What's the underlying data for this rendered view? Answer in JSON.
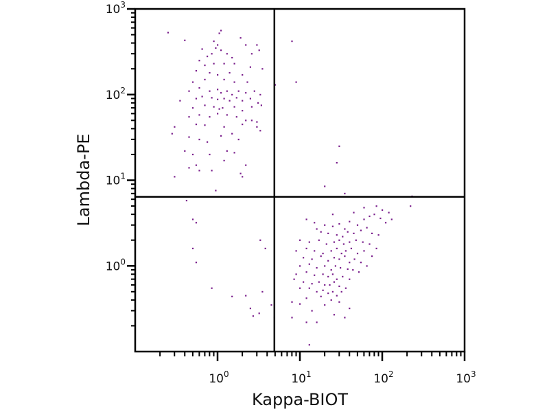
{
  "chart_data": {
    "type": "scatter",
    "title": "",
    "xlabel": "Kappa-BIOT",
    "ylabel": "Lambda-PE",
    "xscale": "log",
    "yscale": "log",
    "xlim": [
      0.1,
      1000
    ],
    "ylim": [
      0.1,
      1000
    ],
    "xticks": [
      {
        "base": "10",
        "exp": "0",
        "value": 1
      },
      {
        "base": "10",
        "exp": "1",
        "value": 10
      },
      {
        "base": "10",
        "exp": "2",
        "value": 100
      },
      {
        "base": "10",
        "exp": "3",
        "value": 1000
      }
    ],
    "yticks": [
      {
        "base": "10",
        "exp": "0",
        "value": 1
      },
      {
        "base": "10",
        "exp": "1",
        "value": 10
      },
      {
        "base": "10",
        "exp": "2",
        "value": 100
      },
      {
        "base": "10",
        "exp": "3",
        "value": 1000
      }
    ],
    "grid": false,
    "quadrant_gates": {
      "x": 4.9,
      "y": 6.4
    },
    "point_color": "#7a1f8c",
    "points": [
      [
        1.1,
        560
      ],
      [
        1.05,
        520
      ],
      [
        0.9,
        420
      ],
      [
        1.0,
        380
      ],
      [
        0.95,
        350
      ],
      [
        1.1,
        330
      ],
      [
        0.75,
        280
      ],
      [
        0.85,
        300
      ],
      [
        1.3,
        300
      ],
      [
        1.5,
        270
      ],
      [
        0.6,
        250
      ],
      [
        0.7,
        220
      ],
      [
        0.9,
        230
      ],
      [
        1.2,
        230
      ],
      [
        1.6,
        230
      ],
      [
        2.2,
        380
      ],
      [
        2.6,
        300
      ],
      [
        2.5,
        210
      ],
      [
        3.5,
        200
      ],
      [
        3.2,
        330
      ],
      [
        0.55,
        190
      ],
      [
        0.8,
        180
      ],
      [
        1.0,
        170
      ],
      [
        1.4,
        180
      ],
      [
        2.0,
        170
      ],
      [
        0.5,
        140
      ],
      [
        0.7,
        150
      ],
      [
        1.2,
        150
      ],
      [
        1.6,
        140
      ],
      [
        2.3,
        140
      ],
      [
        0.45,
        110
      ],
      [
        0.6,
        120
      ],
      [
        0.8,
        110
      ],
      [
        1.0,
        115
      ],
      [
        1.1,
        105
      ],
      [
        1.3,
        110
      ],
      [
        1.5,
        100
      ],
      [
        1.8,
        110
      ],
      [
        2.2,
        105
      ],
      [
        2.8,
        110
      ],
      [
        3.3,
        100
      ],
      [
        0.35,
        85
      ],
      [
        0.55,
        90
      ],
      [
        0.65,
        95
      ],
      [
        0.85,
        92
      ],
      [
        1.0,
        88
      ],
      [
        1.2,
        90
      ],
      [
        1.4,
        85
      ],
      [
        1.7,
        92
      ],
      [
        2.0,
        85
      ],
      [
        2.5,
        90
      ],
      [
        3.1,
        80
      ],
      [
        0.5,
        70
      ],
      [
        0.7,
        75
      ],
      [
        0.9,
        72
      ],
      [
        1.05,
        68
      ],
      [
        1.15,
        70
      ],
      [
        1.6,
        72
      ],
      [
        2.0,
        65
      ],
      [
        2.6,
        72
      ],
      [
        3.4,
        75
      ],
      [
        0.45,
        55
      ],
      [
        0.6,
        58
      ],
      [
        0.8,
        55
      ],
      [
        1.0,
        60
      ],
      [
        1.3,
        58
      ],
      [
        1.7,
        55
      ],
      [
        2.2,
        50
      ],
      [
        2.6,
        50
      ],
      [
        3.0,
        48
      ],
      [
        0.3,
        42
      ],
      [
        0.55,
        45
      ],
      [
        0.7,
        44
      ],
      [
        1.2,
        42
      ],
      [
        2.0,
        45
      ],
      [
        3.0,
        42
      ],
      [
        3.3,
        38
      ],
      [
        0.28,
        35
      ],
      [
        0.45,
        32
      ],
      [
        0.6,
        30
      ],
      [
        0.75,
        28
      ],
      [
        1.1,
        33
      ],
      [
        1.5,
        35
      ],
      [
        1.8,
        30
      ],
      [
        0.4,
        22
      ],
      [
        0.5,
        20
      ],
      [
        0.8,
        20
      ],
      [
        1.3,
        22
      ],
      [
        1.6,
        21
      ],
      [
        0.45,
        14
      ],
      [
        0.55,
        15
      ],
      [
        0.85,
        13
      ],
      [
        1.2,
        17
      ],
      [
        1.9,
        12
      ],
      [
        2.2,
        15
      ],
      [
        0.3,
        11
      ],
      [
        0.6,
        13
      ],
      [
        0.95,
        7.6
      ],
      [
        2.0,
        11
      ],
      [
        3.0,
        380
      ],
      [
        0.65,
        340
      ],
      [
        1.9,
        460
      ],
      [
        0.25,
        530
      ],
      [
        0.4,
        430
      ],
      [
        5,
        130
      ],
      [
        8,
        420
      ],
      [
        9,
        140
      ],
      [
        30,
        25
      ],
      [
        28,
        16
      ],
      [
        20,
        8.5
      ],
      [
        35,
        7
      ],
      [
        230,
        6.5
      ],
      [
        220,
        5
      ],
      [
        0.42,
        5.8
      ],
      [
        0.5,
        3.5
      ],
      [
        0.55,
        3.2
      ],
      [
        0.5,
        1.6
      ],
      [
        0.55,
        1.1
      ],
      [
        0.85,
        0.55
      ],
      [
        2.2,
        0.45
      ],
      [
        2.5,
        0.32
      ],
      [
        2.7,
        0.26
      ],
      [
        3.2,
        0.28
      ],
      [
        3.5,
        0.5
      ],
      [
        3.3,
        2.0
      ],
      [
        3.8,
        1.6
      ],
      [
        4.5,
        0.35
      ],
      [
        4.9,
        0.25
      ],
      [
        1.5,
        0.44
      ],
      [
        12,
        3.5
      ],
      [
        15,
        3.2
      ],
      [
        20,
        3.0
      ],
      [
        25,
        2.9
      ],
      [
        30,
        3.1
      ],
      [
        35,
        2.7
      ],
      [
        40,
        3.3
      ],
      [
        50,
        3.0
      ],
      [
        60,
        3.5
      ],
      [
        70,
        3.8
      ],
      [
        80,
        4.0
      ],
      [
        95,
        3.6
      ],
      [
        110,
        3.2
      ],
      [
        18,
        2.5
      ],
      [
        22,
        2.4
      ],
      [
        28,
        2.3
      ],
      [
        33,
        2.2
      ],
      [
        38,
        2.5
      ],
      [
        45,
        2.4
      ],
      [
        55,
        2.6
      ],
      [
        65,
        2.8
      ],
      [
        75,
        2.4
      ],
      [
        90,
        2.3
      ],
      [
        10,
        2.0
      ],
      [
        13,
        1.9
      ],
      [
        17,
        2.0
      ],
      [
        21,
        1.8
      ],
      [
        26,
        1.9
      ],
      [
        30,
        2.0
      ],
      [
        34,
        1.8
      ],
      [
        40,
        1.9
      ],
      [
        48,
        2.0
      ],
      [
        58,
        1.9
      ],
      [
        70,
        1.8
      ],
      [
        85,
        1.6
      ],
      [
        9,
        1.5
      ],
      [
        12,
        1.6
      ],
      [
        15,
        1.5
      ],
      [
        19,
        1.4
      ],
      [
        24,
        1.5
      ],
      [
        28,
        1.6
      ],
      [
        32,
        1.4
      ],
      [
        36,
        1.5
      ],
      [
        42,
        1.6
      ],
      [
        50,
        1.4
      ],
      [
        60,
        1.5
      ],
      [
        75,
        1.3
      ],
      [
        11,
        1.25
      ],
      [
        14,
        1.2
      ],
      [
        18,
        1.3
      ],
      [
        22,
        1.15
      ],
      [
        26,
        1.25
      ],
      [
        30,
        1.2
      ],
      [
        35,
        1.3
      ],
      [
        40,
        1.1
      ],
      [
        46,
        1.2
      ],
      [
        55,
        1.1
      ],
      [
        65,
        1.0
      ],
      [
        10,
        1.0
      ],
      [
        13,
        1.05
      ],
      [
        16,
        0.95
      ],
      [
        20,
        1.0
      ],
      [
        24,
        0.9
      ],
      [
        27,
        1.0
      ],
      [
        31,
        0.95
      ],
      [
        38,
        0.92
      ],
      [
        44,
        0.9
      ],
      [
        52,
        0.85
      ],
      [
        9,
        0.8
      ],
      [
        12,
        0.85
      ],
      [
        15,
        0.78
      ],
      [
        19,
        0.8
      ],
      [
        22,
        0.75
      ],
      [
        25,
        0.8
      ],
      [
        28,
        0.7
      ],
      [
        33,
        0.75
      ],
      [
        40,
        0.7
      ],
      [
        11,
        0.65
      ],
      [
        14,
        0.62
      ],
      [
        17,
        0.65
      ],
      [
        20,
        0.6
      ],
      [
        23,
        0.6
      ],
      [
        26,
        0.65
      ],
      [
        30,
        0.58
      ],
      [
        36,
        0.55
      ],
      [
        8.5,
        0.7
      ],
      [
        10,
        0.55
      ],
      [
        13,
        0.55
      ],
      [
        16,
        0.5
      ],
      [
        19,
        0.52
      ],
      [
        22,
        0.48
      ],
      [
        25,
        0.5
      ],
      [
        28,
        0.45
      ],
      [
        32,
        0.5
      ],
      [
        12,
        0.42
      ],
      [
        18,
        0.44
      ],
      [
        24,
        0.4
      ],
      [
        30,
        0.38
      ],
      [
        40,
        0.32
      ],
      [
        8,
        0.38
      ],
      [
        10,
        0.36
      ],
      [
        14,
        0.3
      ],
      [
        20,
        0.35
      ],
      [
        26,
        0.27
      ],
      [
        35,
        0.25
      ],
      [
        12,
        0.22
      ],
      [
        16,
        0.22
      ],
      [
        13,
        0.12
      ],
      [
        8,
        0.25
      ],
      [
        100,
        4.5
      ],
      [
        120,
        4.2
      ],
      [
        85,
        5.0
      ],
      [
        60,
        4.8
      ],
      [
        45,
        4.2
      ],
      [
        25,
        4.0
      ],
      [
        130,
        3.5
      ],
      [
        16,
        2.7
      ]
    ]
  }
}
